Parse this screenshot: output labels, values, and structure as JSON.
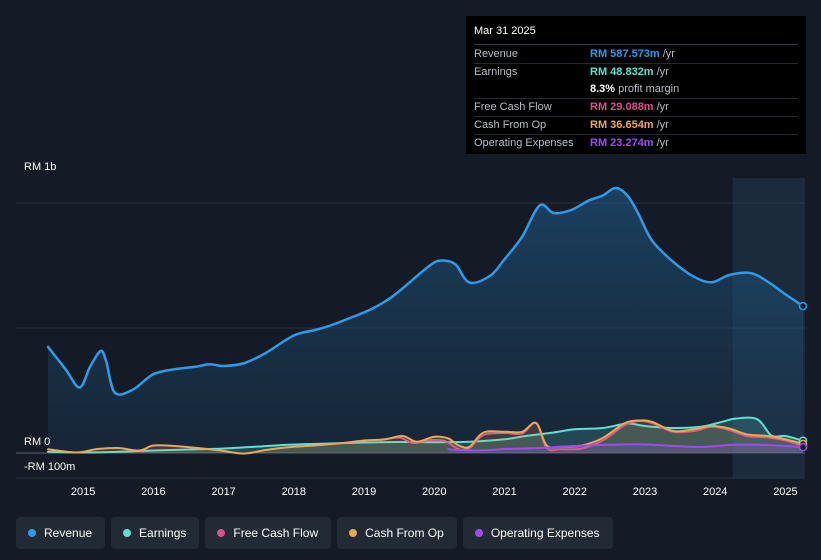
{
  "tooltip": {
    "date": "Mar 31 2025",
    "rows": [
      {
        "label": "Revenue",
        "value": "RM 587.573m",
        "unit": "/yr",
        "color": "#2d9be8"
      },
      {
        "label": "Earnings",
        "value": "RM 48.832m",
        "unit": "/yr",
        "color": "#5ce1d2"
      },
      {
        "label": "",
        "value": "8.3%",
        "unit": "profit margin",
        "color": "#ffffff"
      },
      {
        "label": "Free Cash Flow",
        "value": "RM 29.088m",
        "unit": "/yr",
        "color": "#d9508a"
      },
      {
        "label": "Cash From Op",
        "value": "RM 36.654m",
        "unit": "/yr",
        "color": "#eba656"
      },
      {
        "label": "Operating Expenses",
        "value": "RM 23.274m",
        "unit": "/yr",
        "color": "#9b4cf5"
      }
    ]
  },
  "legend": [
    {
      "label": "Revenue",
      "color": "#2d9be8"
    },
    {
      "label": "Earnings",
      "color": "#5ce1d2"
    },
    {
      "label": "Free Cash Flow",
      "color": "#d9508a"
    },
    {
      "label": "Cash From Op",
      "color": "#eba656"
    },
    {
      "label": "Operating Expenses",
      "color": "#9b4cf5"
    }
  ],
  "chart_data": {
    "type": "area",
    "title": "",
    "xlabel": "",
    "ylabel": "",
    "y_labels": [
      {
        "label": "RM 1b",
        "value": 1000
      },
      {
        "label": "RM 0",
        "value": 0
      },
      {
        "label": "-RM 100m",
        "value": -100
      }
    ],
    "ylim": [
      -100,
      1100
    ],
    "xlim": [
      2014.5,
      2025.25
    ],
    "x_ticks": [
      2015,
      2016,
      2017,
      2018,
      2019,
      2020,
      2021,
      2022,
      2023,
      2024,
      2025
    ],
    "forecast_start": 2024.25,
    "series": [
      {
        "name": "Revenue",
        "color": "#2d9be8",
        "fill": true,
        "points": [
          [
            2014.5,
            425
          ],
          [
            2014.75,
            335
          ],
          [
            2014.95,
            262
          ],
          [
            2015.1,
            345
          ],
          [
            2015.25,
            408
          ],
          [
            2015.33,
            365
          ],
          [
            2015.45,
            242
          ],
          [
            2015.7,
            252
          ],
          [
            2016.0,
            315
          ],
          [
            2016.3,
            335
          ],
          [
            2016.6,
            345
          ],
          [
            2016.8,
            355
          ],
          [
            2017.0,
            348
          ],
          [
            2017.3,
            360
          ],
          [
            2017.6,
            400
          ],
          [
            2018.0,
            470
          ],
          [
            2018.3,
            492
          ],
          [
            2018.5,
            508
          ],
          [
            2018.8,
            540
          ],
          [
            2019.1,
            575
          ],
          [
            2019.4,
            625
          ],
          [
            2019.7,
            695
          ],
          [
            2019.95,
            753
          ],
          [
            2020.1,
            770
          ],
          [
            2020.3,
            755
          ],
          [
            2020.5,
            682
          ],
          [
            2020.8,
            710
          ],
          [
            2021.0,
            775
          ],
          [
            2021.25,
            865
          ],
          [
            2021.5,
            990
          ],
          [
            2021.7,
            960
          ],
          [
            2021.95,
            972
          ],
          [
            2022.2,
            1010
          ],
          [
            2022.4,
            1030
          ],
          [
            2022.58,
            1060
          ],
          [
            2022.75,
            1030
          ],
          [
            2022.9,
            960
          ],
          [
            2023.1,
            850
          ],
          [
            2023.4,
            765
          ],
          [
            2023.7,
            705
          ],
          [
            2023.95,
            683
          ],
          [
            2024.2,
            712
          ],
          [
            2024.5,
            720
          ],
          [
            2024.75,
            685
          ],
          [
            2025.0,
            635
          ],
          [
            2025.25,
            587.573
          ]
        ]
      },
      {
        "name": "Earnings",
        "color": "#5ce1d2",
        "fill": true,
        "points": [
          [
            2014.5,
            5
          ],
          [
            2015.0,
            2
          ],
          [
            2015.5,
            5
          ],
          [
            2016.0,
            10
          ],
          [
            2016.5,
            14
          ],
          [
            2017.0,
            18
          ],
          [
            2017.5,
            26
          ],
          [
            2018.0,
            34
          ],
          [
            2018.5,
            38
          ],
          [
            2019.0,
            42
          ],
          [
            2019.5,
            44
          ],
          [
            2020.0,
            43
          ],
          [
            2020.5,
            45
          ],
          [
            2021.0,
            55
          ],
          [
            2021.3,
            68
          ],
          [
            2021.7,
            82
          ],
          [
            2022.0,
            95
          ],
          [
            2022.4,
            100
          ],
          [
            2022.75,
            118
          ],
          [
            2023.0,
            108
          ],
          [
            2023.4,
            100
          ],
          [
            2023.8,
            105
          ],
          [
            2024.1,
            125
          ],
          [
            2024.3,
            138
          ],
          [
            2024.6,
            135
          ],
          [
            2024.8,
            70
          ],
          [
            2025.0,
            68
          ],
          [
            2025.25,
            48.832
          ]
        ]
      },
      {
        "name": "Free Cash Flow",
        "color": "#d9508a",
        "fill": false,
        "points": [
          [
            2019.25,
            52
          ],
          [
            2019.5,
            62
          ],
          [
            2019.7,
            40
          ],
          [
            2019.95,
            52
          ],
          [
            2020.15,
            48
          ],
          [
            2020.35,
            15
          ],
          [
            2020.5,
            20
          ],
          [
            2020.7,
            72
          ],
          [
            2021.0,
            80
          ],
          [
            2021.25,
            78
          ],
          [
            2021.45,
            120
          ],
          [
            2021.6,
            20
          ],
          [
            2021.8,
            15
          ],
          [
            2022.1,
            18
          ],
          [
            2022.4,
            50
          ],
          [
            2022.7,
            110
          ],
          [
            2022.9,
            128
          ],
          [
            2023.1,
            120
          ],
          [
            2023.4,
            85
          ],
          [
            2023.7,
            88
          ],
          [
            2023.95,
            105
          ],
          [
            2024.2,
            92
          ],
          [
            2024.45,
            68
          ],
          [
            2024.75,
            62
          ],
          [
            2025.0,
            50
          ],
          [
            2025.25,
            29.088
          ]
        ]
      },
      {
        "name": "Cash From Op",
        "color": "#eba656",
        "fill": true,
        "points": [
          [
            2014.5,
            15
          ],
          [
            2014.9,
            2
          ],
          [
            2015.2,
            16
          ],
          [
            2015.5,
            20
          ],
          [
            2015.8,
            10
          ],
          [
            2016.0,
            30
          ],
          [
            2016.3,
            28
          ],
          [
            2016.7,
            18
          ],
          [
            2017.0,
            8
          ],
          [
            2017.3,
            -2
          ],
          [
            2017.6,
            12
          ],
          [
            2017.95,
            24
          ],
          [
            2018.3,
            30
          ],
          [
            2018.7,
            40
          ],
          [
            2019.0,
            50
          ],
          [
            2019.3,
            55
          ],
          [
            2019.55,
            68
          ],
          [
            2019.75,
            45
          ],
          [
            2020.0,
            65
          ],
          [
            2020.2,
            58
          ],
          [
            2020.35,
            30
          ],
          [
            2020.5,
            25
          ],
          [
            2020.7,
            82
          ],
          [
            2021.0,
            85
          ],
          [
            2021.25,
            85
          ],
          [
            2021.45,
            120
          ],
          [
            2021.6,
            30
          ],
          [
            2021.8,
            25
          ],
          [
            2022.1,
            30
          ],
          [
            2022.4,
            60
          ],
          [
            2022.7,
            118
          ],
          [
            2022.9,
            130
          ],
          [
            2023.1,
            125
          ],
          [
            2023.4,
            88
          ],
          [
            2023.7,
            95
          ],
          [
            2023.95,
            108
          ],
          [
            2024.2,
            98
          ],
          [
            2024.45,
            75
          ],
          [
            2024.75,
            68
          ],
          [
            2025.0,
            55
          ],
          [
            2025.25,
            36.654
          ]
        ]
      },
      {
        "name": "Operating Expenses",
        "color": "#9b4cf5",
        "fill": true,
        "points": [
          [
            2020.2,
            15
          ],
          [
            2020.5,
            10
          ],
          [
            2020.8,
            12
          ],
          [
            2021.0,
            16
          ],
          [
            2021.5,
            20
          ],
          [
            2022.0,
            28
          ],
          [
            2022.5,
            33
          ],
          [
            2022.9,
            35
          ],
          [
            2023.3,
            30
          ],
          [
            2023.8,
            24
          ],
          [
            2024.2,
            32
          ],
          [
            2024.6,
            33
          ],
          [
            2025.0,
            28
          ],
          [
            2025.25,
            23.274
          ]
        ]
      }
    ]
  }
}
